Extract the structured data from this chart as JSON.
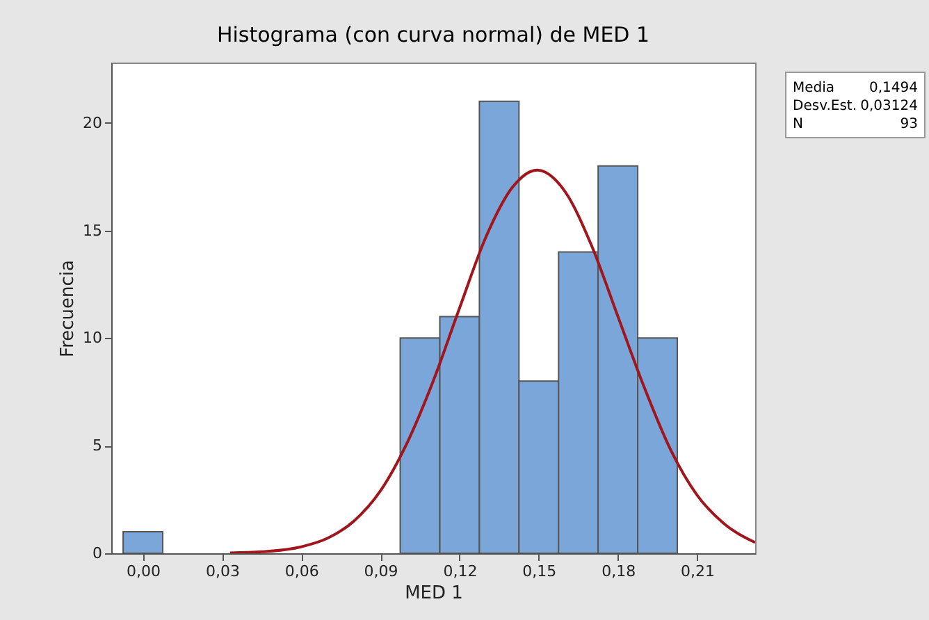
{
  "chart_data": {
    "type": "histogram",
    "title": "Histograma (con curva normal) de MED 1",
    "xlabel": "MED 1",
    "ylabel": "Frecuencia",
    "bins": [
      -0.0075,
      0.0075,
      0.0225,
      0.0375,
      0.0525,
      0.0675,
      0.0825,
      0.0975,
      0.1125,
      0.1275,
      0.1425,
      0.1575,
      0.1725,
      0.1875,
      0.2025
    ],
    "values": [
      1,
      0,
      0,
      0,
      0,
      0,
      0,
      10,
      11,
      21,
      8,
      14,
      18,
      10
    ],
    "color": "#7ba6d9",
    "series": [
      {
        "type": "line",
        "color": "#a0161c",
        "x": [
          0.033,
          0.045,
          0.06,
          0.07,
          0.08,
          0.09,
          0.1,
          0.11,
          0.12,
          0.13,
          0.14,
          0.1494,
          0.16,
          0.17,
          0.18,
          0.19,
          0.2,
          0.21,
          0.22,
          0.232
        ],
        "values": [
          0.02,
          0.07,
          0.3,
          0.7,
          1.5,
          2.9,
          5.1,
          8.0,
          11.4,
          14.7,
          17.0,
          17.8,
          16.8,
          14.3,
          11.0,
          7.7,
          4.8,
          2.7,
          1.4,
          0.5
        ]
      }
    ],
    "xlim": [
      -0.012,
      0.232
    ],
    "ylim": [
      0,
      22.8
    ],
    "xticks": [
      {
        "value": 0,
        "label": "0,00"
      },
      {
        "value": 0.03,
        "label": "0,03"
      },
      {
        "value": 0.06,
        "label": "0,06"
      },
      {
        "value": 0.09,
        "label": "0,09"
      },
      {
        "value": 0.12,
        "label": "0,12"
      },
      {
        "value": 0.15,
        "label": "0,15"
      },
      {
        "value": 0.18,
        "label": "0,18"
      },
      {
        "value": 0.21,
        "label": "0,21"
      }
    ],
    "yticks": [
      0,
      5,
      10,
      15,
      20
    ],
    "annotations": [
      "Media",
      "0,1494",
      "Desv.Est.",
      "0,03124",
      "N",
      "93"
    ]
  }
}
